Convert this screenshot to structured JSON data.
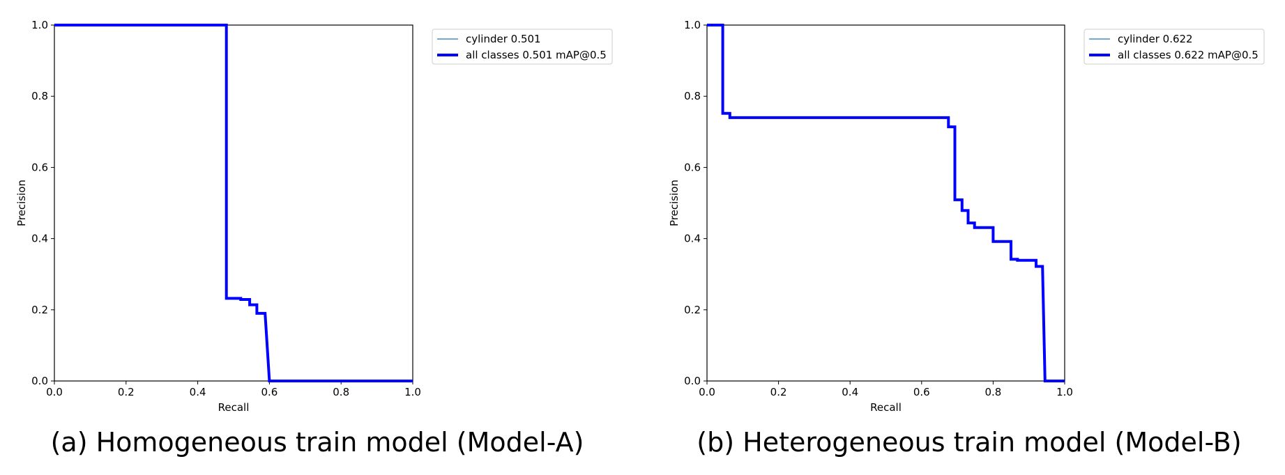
{
  "chart_data": [
    {
      "type": "line",
      "xlabel": "Recall",
      "ylabel": "Precision",
      "xlim": [
        0,
        1
      ],
      "ylim": [
        0,
        1
      ],
      "xticks": [
        "0.0",
        "0.2",
        "0.4",
        "0.6",
        "0.8",
        "1.0"
      ],
      "yticks": [
        "0.0",
        "0.2",
        "0.4",
        "0.6",
        "0.8",
        "1.0"
      ],
      "grid": false,
      "legend_position": "outside-top-right",
      "caption": "(a) Homogeneous train model (Model-A)",
      "series": [
        {
          "name": "cylinder 0.501",
          "color": "#1f77b4",
          "line_width": "thin",
          "points": [
            [
              0,
              1.0
            ],
            [
              0.48,
              1.0
            ],
            [
              0.48,
              0.232
            ],
            [
              0.52,
              0.232
            ],
            [
              0.52,
              0.229
            ],
            [
              0.545,
              0.229
            ],
            [
              0.545,
              0.214
            ],
            [
              0.565,
              0.214
            ],
            [
              0.565,
              0.19
            ],
            [
              0.588,
              0.19
            ],
            [
              0.6,
              0.0
            ],
            [
              1.0,
              0.0
            ]
          ]
        },
        {
          "name": "all classes 0.501 mAP@0.5",
          "color": "#0000ff",
          "line_width": "thick",
          "points": [
            [
              0,
              1.0
            ],
            [
              0.48,
              1.0
            ],
            [
              0.48,
              0.232
            ],
            [
              0.52,
              0.232
            ],
            [
              0.52,
              0.229
            ],
            [
              0.545,
              0.229
            ],
            [
              0.545,
              0.214
            ],
            [
              0.565,
              0.214
            ],
            [
              0.565,
              0.19
            ],
            [
              0.588,
              0.19
            ],
            [
              0.6,
              0.0
            ],
            [
              1.0,
              0.0
            ]
          ]
        }
      ]
    },
    {
      "type": "line",
      "xlabel": "Recall",
      "ylabel": "Precision",
      "xlim": [
        0,
        1
      ],
      "ylim": [
        0,
        1
      ],
      "xticks": [
        "0.0",
        "0.2",
        "0.4",
        "0.6",
        "0.8",
        "1.0"
      ],
      "yticks": [
        "0.0",
        "0.2",
        "0.4",
        "0.6",
        "0.8",
        "1.0"
      ],
      "grid": false,
      "legend_position": "outside-top-right",
      "caption": "(b) Heterogeneous train model (Model-B)",
      "series": [
        {
          "name": "cylinder 0.622",
          "color": "#1f77b4",
          "line_width": "thin",
          "points": [
            [
              0,
              1.0
            ],
            [
              0.044,
              1.0
            ],
            [
              0.044,
              0.752
            ],
            [
              0.064,
              0.752
            ],
            [
              0.064,
              0.74
            ],
            [
              0.675,
              0.74
            ],
            [
              0.675,
              0.714
            ],
            [
              0.693,
              0.714
            ],
            [
              0.693,
              0.509
            ],
            [
              0.713,
              0.509
            ],
            [
              0.713,
              0.479
            ],
            [
              0.73,
              0.479
            ],
            [
              0.73,
              0.444
            ],
            [
              0.748,
              0.444
            ],
            [
              0.748,
              0.431
            ],
            [
              0.8,
              0.431
            ],
            [
              0.8,
              0.392
            ],
            [
              0.85,
              0.392
            ],
            [
              0.85,
              0.342
            ],
            [
              0.868,
              0.342
            ],
            [
              0.868,
              0.339
            ],
            [
              0.92,
              0.339
            ],
            [
              0.92,
              0.322
            ],
            [
              0.938,
              0.322
            ],
            [
              0.945,
              0.0
            ],
            [
              1.0,
              0.0
            ]
          ]
        },
        {
          "name": "all classes 0.622 mAP@0.5",
          "color": "#0000ff",
          "line_width": "thick",
          "points": [
            [
              0,
              1.0
            ],
            [
              0.044,
              1.0
            ],
            [
              0.044,
              0.752
            ],
            [
              0.064,
              0.752
            ],
            [
              0.064,
              0.74
            ],
            [
              0.675,
              0.74
            ],
            [
              0.675,
              0.714
            ],
            [
              0.693,
              0.714
            ],
            [
              0.693,
              0.509
            ],
            [
              0.713,
              0.509
            ],
            [
              0.713,
              0.479
            ],
            [
              0.73,
              0.479
            ],
            [
              0.73,
              0.444
            ],
            [
              0.748,
              0.444
            ],
            [
              0.748,
              0.431
            ],
            [
              0.8,
              0.431
            ],
            [
              0.8,
              0.392
            ],
            [
              0.85,
              0.392
            ],
            [
              0.85,
              0.342
            ],
            [
              0.868,
              0.342
            ],
            [
              0.868,
              0.339
            ],
            [
              0.92,
              0.339
            ],
            [
              0.92,
              0.322
            ],
            [
              0.938,
              0.322
            ],
            [
              0.945,
              0.0
            ],
            [
              1.0,
              0.0
            ]
          ]
        }
      ]
    }
  ]
}
